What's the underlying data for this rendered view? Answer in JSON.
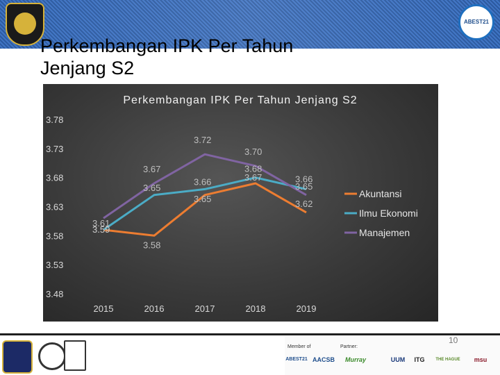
{
  "slide": {
    "title": "Perkembangan IPK Per Tahun Jenjang S2",
    "page_number": "10",
    "top_right_logo_text": "ABEST21"
  },
  "footer": {
    "member_label": "Member of",
    "partner_label": "Partner:",
    "member_logos": [
      "ABEST21",
      "AACSB"
    ],
    "partner_logos": [
      "Murray",
      "UUM",
      "ITG",
      "THE HAGUE",
      "msu"
    ]
  },
  "chart_data": {
    "type": "line",
    "title": "Perkembangan IPK Per Tahun Jenjang S2",
    "categories": [
      "2015",
      "2016",
      "2017",
      "2018",
      "2019"
    ],
    "y_ticks": [
      "3.78",
      "3.73",
      "3.68",
      "3.63",
      "3.58",
      "3.53",
      "3.48"
    ],
    "ylim": [
      3.48,
      3.78
    ],
    "grid": false,
    "legend_position": "right",
    "series": [
      {
        "name": "Akuntansi",
        "color": "#ED7D31",
        "values": [
          3.59,
          3.58,
          3.65,
          3.67,
          3.62
        ],
        "labels": [
          "3.59",
          "3.58",
          "3.65",
          "3.67",
          "3.62"
        ]
      },
      {
        "name": "Ilmu Ekonomi",
        "color": "#4BACC6",
        "values": [
          3.59,
          3.65,
          3.66,
          3.68,
          3.66
        ],
        "labels": [
          "3.59",
          "3.65",
          "3.66",
          "3.68",
          "3.66"
        ]
      },
      {
        "name": "Manajemen",
        "color": "#8064A2",
        "values": [
          3.61,
          3.67,
          3.72,
          3.7,
          3.65
        ],
        "labels": [
          "3.61",
          "3.67",
          "3.72",
          "3.70",
          "3.65"
        ]
      }
    ]
  }
}
